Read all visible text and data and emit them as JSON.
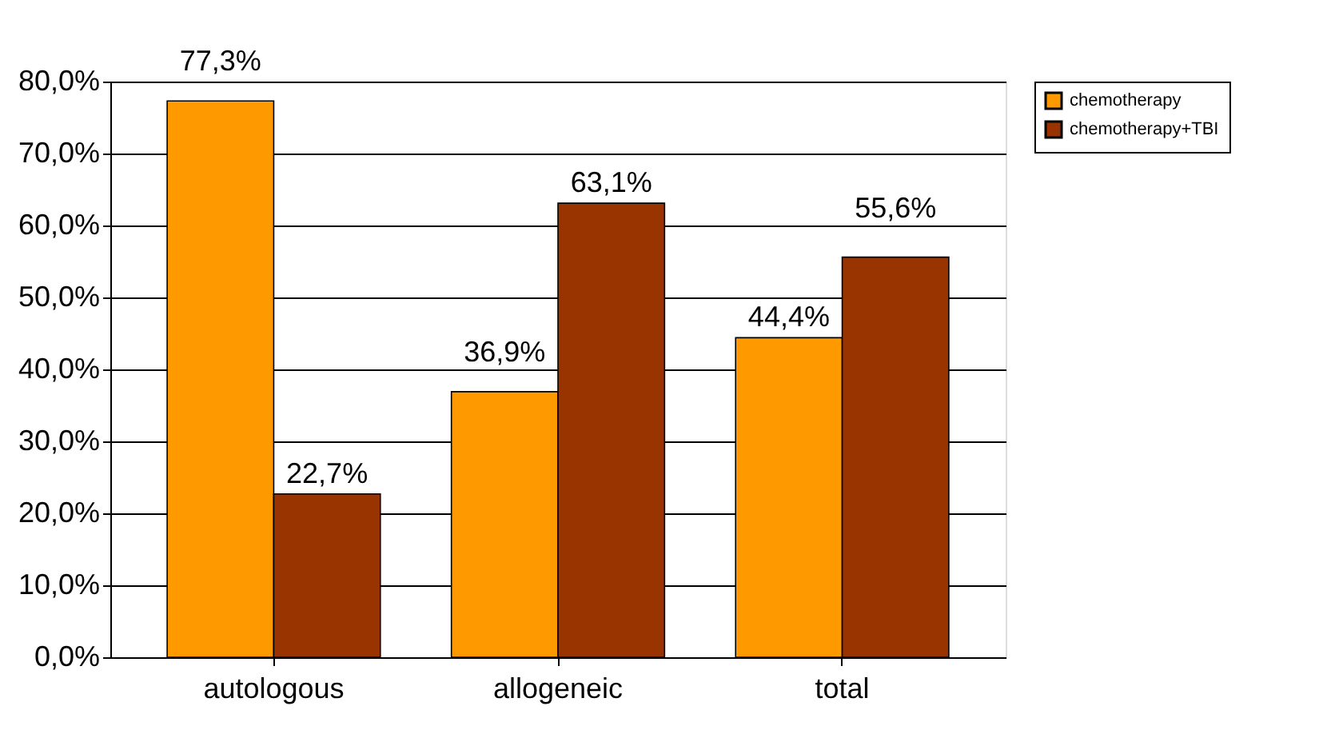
{
  "chart_data": {
    "type": "bar",
    "categories": [
      "autologous",
      "allogeneic",
      "total"
    ],
    "series": [
      {
        "name": "chemotherapy",
        "color": "#ff9900",
        "values": [
          77.3,
          36.9,
          44.4
        ],
        "value_labels": [
          "77,3%",
          "36,9%",
          "44,4%"
        ]
      },
      {
        "name": "chemotherapy+TBI",
        "color": "#993300",
        "values": [
          22.7,
          63.1,
          55.6
        ],
        "value_labels": [
          "22,7%",
          "63,1%",
          "55,6%"
        ]
      }
    ],
    "ylim": [
      0,
      80
    ],
    "yticks": [
      {
        "value": 0,
        "label": "0,0%"
      },
      {
        "value": 10,
        "label": "10,0%"
      },
      {
        "value": 20,
        "label": "20,0%"
      },
      {
        "value": 30,
        "label": "30,0%"
      },
      {
        "value": 40,
        "label": "40,0%"
      },
      {
        "value": 50,
        "label": "50,0%"
      },
      {
        "value": 60,
        "label": "60,0%"
      },
      {
        "value": 70,
        "label": "70,0%"
      },
      {
        "value": 80,
        "label": "80,0%"
      }
    ],
    "grid": "y",
    "legend": "right"
  }
}
